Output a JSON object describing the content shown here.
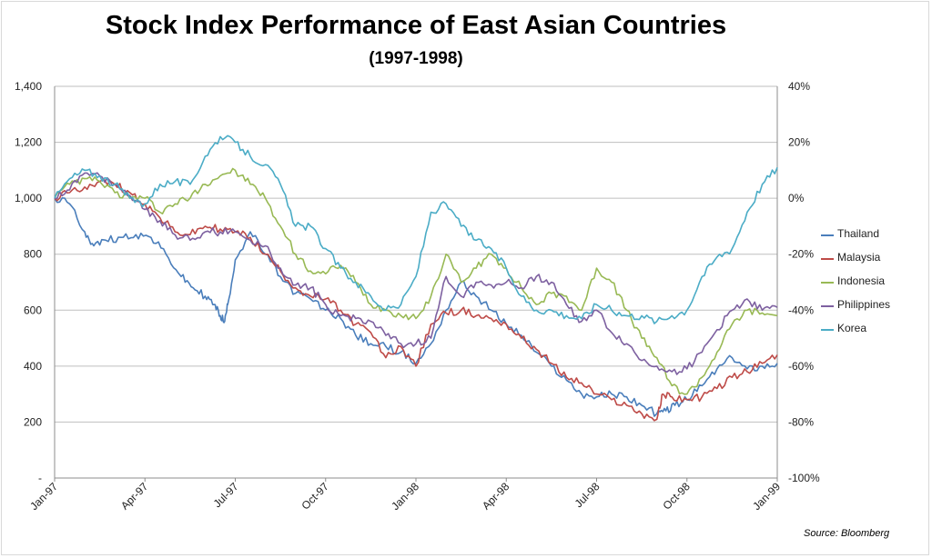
{
  "chart_data": {
    "type": "line",
    "title": "Stock Index Performance of East Asian Countries",
    "subtitle": "(1997-1998)",
    "source": "Source:  Bloomberg",
    "y_left_ticks": [
      "-",
      "200",
      "400",
      "600",
      "800",
      "1,000",
      "1,200",
      "1,400"
    ],
    "y_left_range": [
      0,
      1400
    ],
    "y_right_ticks": [
      "-100%",
      "-80%",
      "-60%",
      "-40%",
      "-20%",
      "0%",
      "20%",
      "40%"
    ],
    "y_right_range": [
      -100,
      40
    ],
    "x_ticks": [
      "Jan-97",
      "Apr-97",
      "Jul-97",
      "Oct-97",
      "Jan-98",
      "Apr-98",
      "Jul-98",
      "Oct-98",
      "Jan-99"
    ],
    "x_range_months": [
      0,
      24
    ],
    "legend_position": "right",
    "grid": true,
    "series": [
      {
        "name": "Thailand",
        "color": "#4a7ebb",
        "axis": "left",
        "x": [
          0,
          0.5,
          1,
          1.3,
          1.7,
          2.2,
          2.7,
          3.2,
          3.7,
          4.2,
          4.6,
          5,
          5.3,
          5.5,
          5.65,
          5.75,
          6,
          6.5,
          7,
          7.5,
          8,
          8.5,
          9,
          9.5,
          10,
          10.5,
          11,
          11.5,
          12,
          12.5,
          13,
          13.5,
          14,
          14.5,
          15,
          15.5,
          16,
          16.5,
          17,
          17.5,
          18,
          18.5,
          19,
          19.5,
          20,
          20.3,
          20.6,
          21,
          21.5,
          22,
          22.5,
          23,
          23.5,
          24
        ],
        "y": [
          1000,
          980,
          880,
          830,
          850,
          860,
          870,
          860,
          800,
          720,
          680,
          650,
          620,
          580,
          560,
          620,
          780,
          880,
          800,
          720,
          660,
          640,
          600,
          570,
          510,
          480,
          470,
          450,
          410,
          480,
          600,
          700,
          650,
          600,
          550,
          510,
          450,
          400,
          350,
          300,
          290,
          300,
          290,
          260,
          230,
          240,
          260,
          280,
          330,
          390,
          430,
          390,
          400,
          410
        ]
      },
      {
        "name": "Malaysia",
        "color": "#be4b48",
        "axis": "left",
        "x": [
          0,
          0.5,
          1,
          1.5,
          2,
          2.5,
          3,
          3.5,
          4,
          4.5,
          5,
          5.5,
          6,
          6.5,
          7,
          7.5,
          8,
          8.5,
          9,
          9.5,
          10,
          10.5,
          11,
          11.5,
          12,
          12.5,
          13,
          13.5,
          14,
          14.5,
          15,
          15.5,
          16,
          16.5,
          17,
          17.5,
          18,
          18.5,
          19,
          19.5,
          20,
          20.2,
          20.5,
          21,
          21.5,
          22,
          22.5,
          23,
          23.5,
          24
        ],
        "y": [
          1000,
          1020,
          1040,
          1060,
          1050,
          1020,
          980,
          930,
          880,
          870,
          900,
          890,
          880,
          860,
          800,
          740,
          680,
          650,
          640,
          600,
          550,
          520,
          430,
          470,
          400,
          550,
          590,
          600,
          580,
          570,
          550,
          500,
          460,
          410,
          360,
          340,
          300,
          280,
          260,
          230,
          210,
          300,
          290,
          280,
          290,
          320,
          360,
          380,
          410,
          440
        ]
      },
      {
        "name": "Indonesia",
        "color": "#98b954",
        "axis": "left",
        "x": [
          0,
          0.5,
          1,
          1.5,
          2,
          2.5,
          3,
          3.5,
          4,
          4.5,
          5,
          5.5,
          6,
          6.5,
          7,
          7.5,
          8,
          8.5,
          9,
          9.5,
          10,
          10.5,
          11,
          11.5,
          12,
          12.5,
          13,
          13.5,
          14,
          14.5,
          15,
          15.5,
          16,
          16.5,
          17,
          17.5,
          18,
          18.5,
          19,
          19.5,
          20,
          20.5,
          21,
          21.5,
          22,
          22.5,
          23,
          23.5,
          24
        ],
        "y": [
          1000,
          1050,
          1070,
          1060,
          1020,
          1000,
          1000,
          950,
          980,
          1000,
          1050,
          1080,
          1100,
          1050,
          1000,
          900,
          800,
          740,
          730,
          760,
          700,
          620,
          600,
          580,
          570,
          650,
          800,
          700,
          750,
          800,
          750,
          680,
          620,
          660,
          650,
          600,
          750,
          700,
          600,
          500,
          430,
          330,
          300,
          360,
          450,
          550,
          600,
          590,
          580
        ]
      },
      {
        "name": "Philippines",
        "color": "#7d60a0",
        "axis": "left",
        "x": [
          0,
          0.5,
          1,
          1.5,
          2,
          2.5,
          3,
          3.5,
          4,
          4.5,
          5,
          5.5,
          6,
          6.5,
          7,
          7.5,
          8,
          8.5,
          9,
          9.5,
          10,
          10.5,
          11,
          11.5,
          12,
          12.5,
          13,
          13.5,
          14,
          14.5,
          15,
          15.5,
          16,
          16.5,
          17,
          17.5,
          18,
          18.5,
          19,
          19.5,
          20,
          20.5,
          21,
          21.5,
          22,
          22.5,
          23,
          23.5,
          24
        ],
        "y": [
          1000,
          1030,
          1090,
          1080,
          1050,
          1010,
          960,
          920,
          870,
          850,
          880,
          880,
          880,
          850,
          830,
          750,
          690,
          680,
          620,
          580,
          570,
          560,
          510,
          480,
          480,
          500,
          720,
          650,
          700,
          690,
          700,
          680,
          720,
          700,
          620,
          560,
          600,
          520,
          480,
          420,
          400,
          380,
          390,
          450,
          530,
          600,
          640,
          600,
          610
        ]
      },
      {
        "name": "Korea",
        "color": "#4bacc6",
        "axis": "left",
        "x": [
          0,
          0.5,
          1,
          1.5,
          2,
          2.5,
          3,
          3.5,
          4,
          4.5,
          5,
          5.5,
          6,
          6.5,
          7,
          7.5,
          8,
          8.5,
          9,
          9.5,
          10,
          10.5,
          11,
          11.5,
          12,
          12.5,
          13,
          13.5,
          14,
          14.5,
          15,
          15.5,
          16,
          16.5,
          17,
          17.5,
          18,
          18.5,
          19,
          19.5,
          20,
          20.5,
          21,
          21.5,
          22,
          22.5,
          23,
          23.5,
          24
        ],
        "y": [
          1000,
          1070,
          1100,
          1080,
          1050,
          1000,
          980,
          1050,
          1060,
          1050,
          1150,
          1220,
          1200,
          1150,
          1120,
          1050,
          900,
          900,
          820,
          750,
          700,
          650,
          600,
          620,
          720,
          950,
          980,
          900,
          850,
          820,
          750,
          650,
          600,
          600,
          580,
          570,
          620,
          600,
          580,
          580,
          560,
          580,
          600,
          720,
          790,
          820,
          950,
          1050,
          1110
        ]
      }
    ]
  }
}
